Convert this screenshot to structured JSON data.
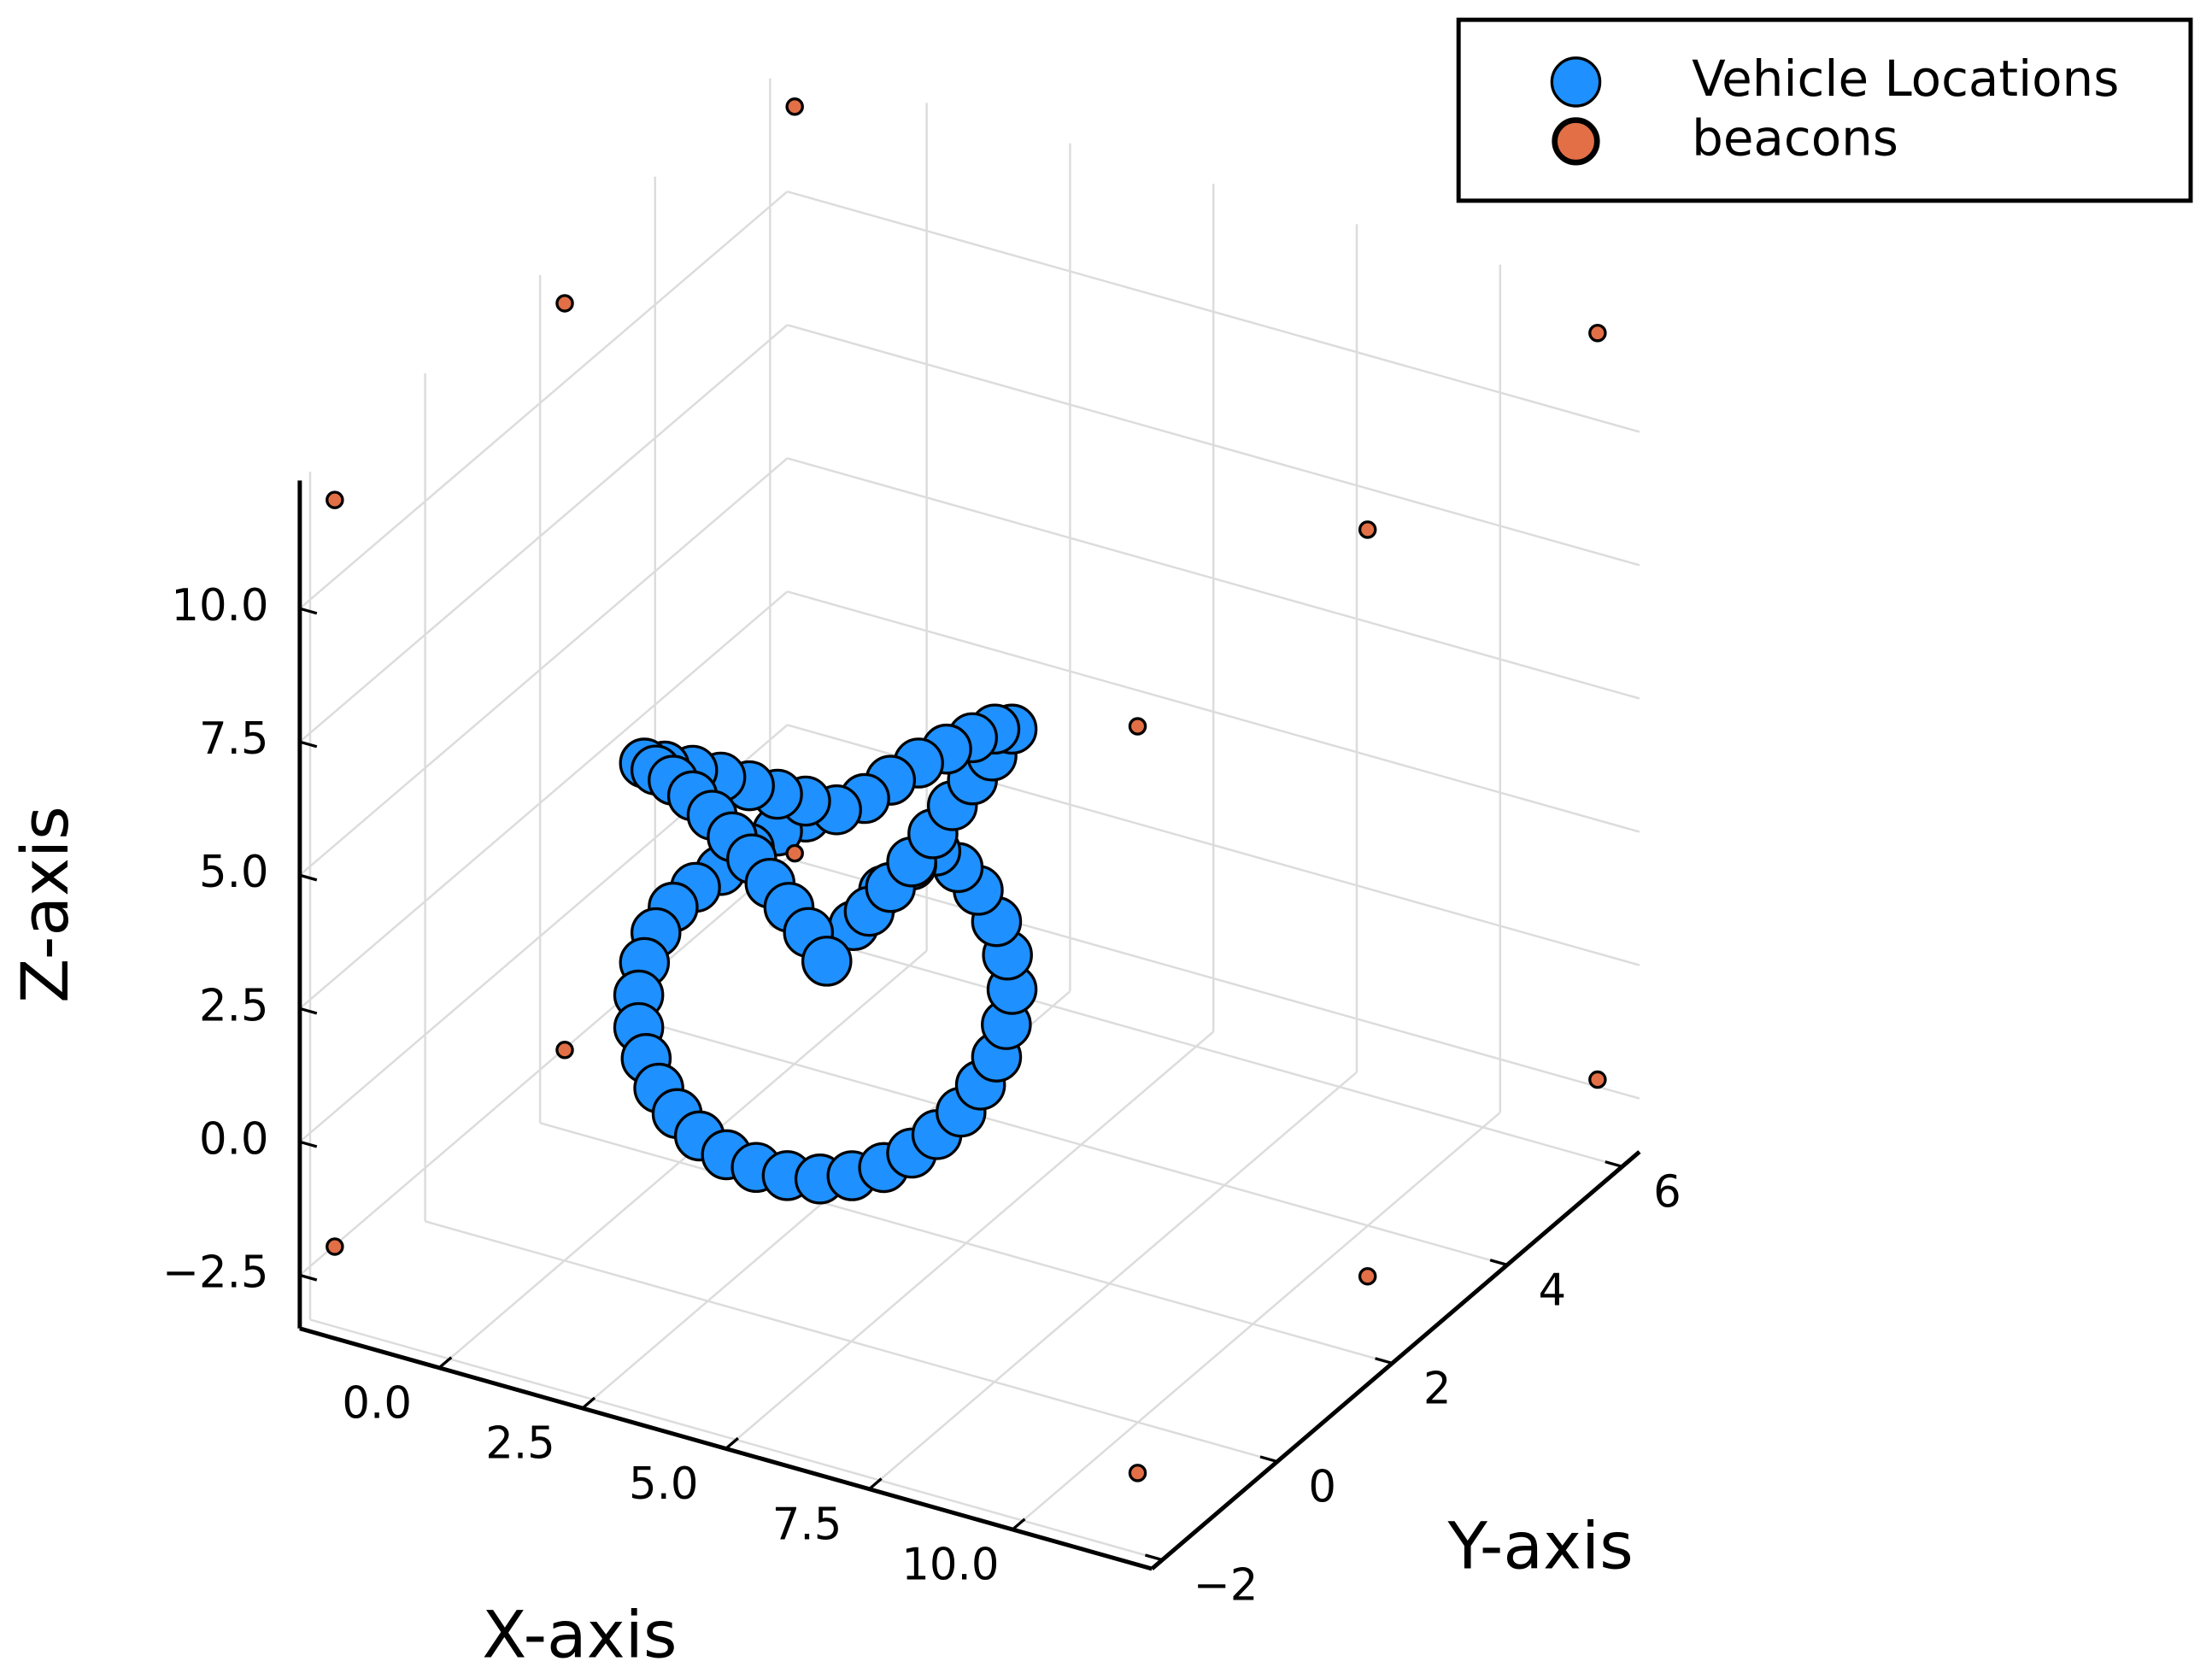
{
  "chart_data": {
    "type": "scatter3d",
    "xlabel": "X-axis",
    "ylabel": "Y-axis",
    "zlabel": "Z-axis",
    "xlim": [
      -2.43,
      12.43
    ],
    "ylim": [
      -2.18,
      6.3
    ],
    "zlim": [
      -3.5,
      12.4
    ],
    "xticks": [
      {
        "value": 0,
        "label": "0.0"
      },
      {
        "value": 2.5,
        "label": "2.5"
      },
      {
        "value": 5,
        "label": "5.0"
      },
      {
        "value": 7.5,
        "label": "7.5"
      },
      {
        "value": 10,
        "label": "10.0"
      }
    ],
    "yticks": [
      {
        "value": -2,
        "label": "−2"
      },
      0,
      2,
      4,
      6
    ],
    "zticks": [
      {
        "value": -2.5,
        "label": "−2.5"
      },
      {
        "value": 0,
        "label": "0.0"
      },
      {
        "value": 2.5,
        "label": "2.5"
      },
      {
        "value": 5,
        "label": "5.0"
      },
      {
        "value": 7.5,
        "label": "7.5"
      },
      {
        "value": 10,
        "label": "10.0"
      }
    ],
    "grid": true,
    "legend": "top-right",
    "series": [
      {
        "name": "Vehicle Locations",
        "color": "#1E90FF",
        "x": [
          2.57,
          2.25,
          1.91,
          1.58,
          1.26,
          0.92,
          0.57,
          0.23,
          -0.11,
          -0.41,
          -0.61,
          -0.26,
          0.23,
          0.72,
          1.22,
          1.71,
          2.2,
          2.74,
          3.23,
          3.68,
          4.17,
          4.66,
          5.11,
          5.5,
          5.8,
          5.45,
          5.11,
          4.76,
          4.42,
          4.05,
          3.68,
          3.31,
          3.04,
          3.56,
          4.05,
          4.47,
          4.86,
          5.21,
          5.53,
          5.72,
          5.8,
          5.7,
          5.53,
          5.25,
          4.91,
          4.49,
          4.05,
          3.56,
          3.01,
          2.45,
          1.88,
          1.34,
          0.82,
          0.35,
          -0.04,
          -0.36,
          -0.58,
          -0.71,
          -0.71,
          -0.61,
          -0.41,
          -0.11,
          0.28,
          0.72,
          1.22,
          1.71,
          2.2
        ],
        "y": [
          2,
          2,
          2,
          2,
          2,
          2,
          2,
          2,
          2,
          2,
          2,
          2,
          2,
          2,
          2,
          2,
          2,
          2,
          2,
          2,
          2,
          2,
          2,
          2,
          2,
          2,
          2,
          2,
          2,
          2,
          2,
          2,
          2,
          2,
          2,
          2,
          2,
          2,
          2,
          2,
          2,
          2,
          2,
          2,
          2,
          2,
          2,
          2,
          2,
          2,
          2,
          2,
          2,
          2,
          2,
          2,
          2,
          2,
          2,
          2,
          2,
          2,
          2,
          2,
          2,
          2,
          2
        ],
        "z": [
          1.05,
          1.49,
          1.86,
          2.21,
          2.57,
          2.88,
          3.18,
          3.44,
          3.63,
          3.73,
          3.8,
          3.85,
          3.92,
          3.94,
          3.93,
          3.92,
          3.94,
          3.94,
          4.3,
          4.78,
          5.25,
          5.66,
          6.01,
          6.29,
          6.38,
          5.77,
          5.22,
          4.63,
          4.0,
          3.36,
          2.77,
          2.21,
          1.86,
          2.68,
          3.3,
          3.69,
          3.5,
          3.18,
          2.69,
          2.12,
          1.5,
          0.81,
          0.15,
          -0.46,
          -1.07,
          -1.62,
          -2.1,
          -2.52,
          -2.84,
          -3.07,
          -3.18,
          -3.19,
          -3.11,
          -2.9,
          -2.6,
          -2.22,
          -1.73,
          -1.19,
          -0.58,
          0.06,
          0.68,
          1.25,
          1.74,
          2.19,
          2.76,
          3.23,
          3.64
        ]
      },
      {
        "name": "beacons",
        "color": "#E26F46",
        "x": [
          -2,
          -2,
          -2,
          -2,
          -2,
          -2,
          12,
          12,
          12,
          12,
          12,
          12
        ],
        "y": [
          -2,
          2,
          6,
          -2,
          2,
          6,
          -2,
          2,
          6,
          -2,
          2,
          6
        ],
        "z": [
          -2,
          -2,
          -2,
          12,
          12,
          12,
          -2,
          -2,
          -2,
          12,
          12,
          12
        ]
      }
    ]
  }
}
